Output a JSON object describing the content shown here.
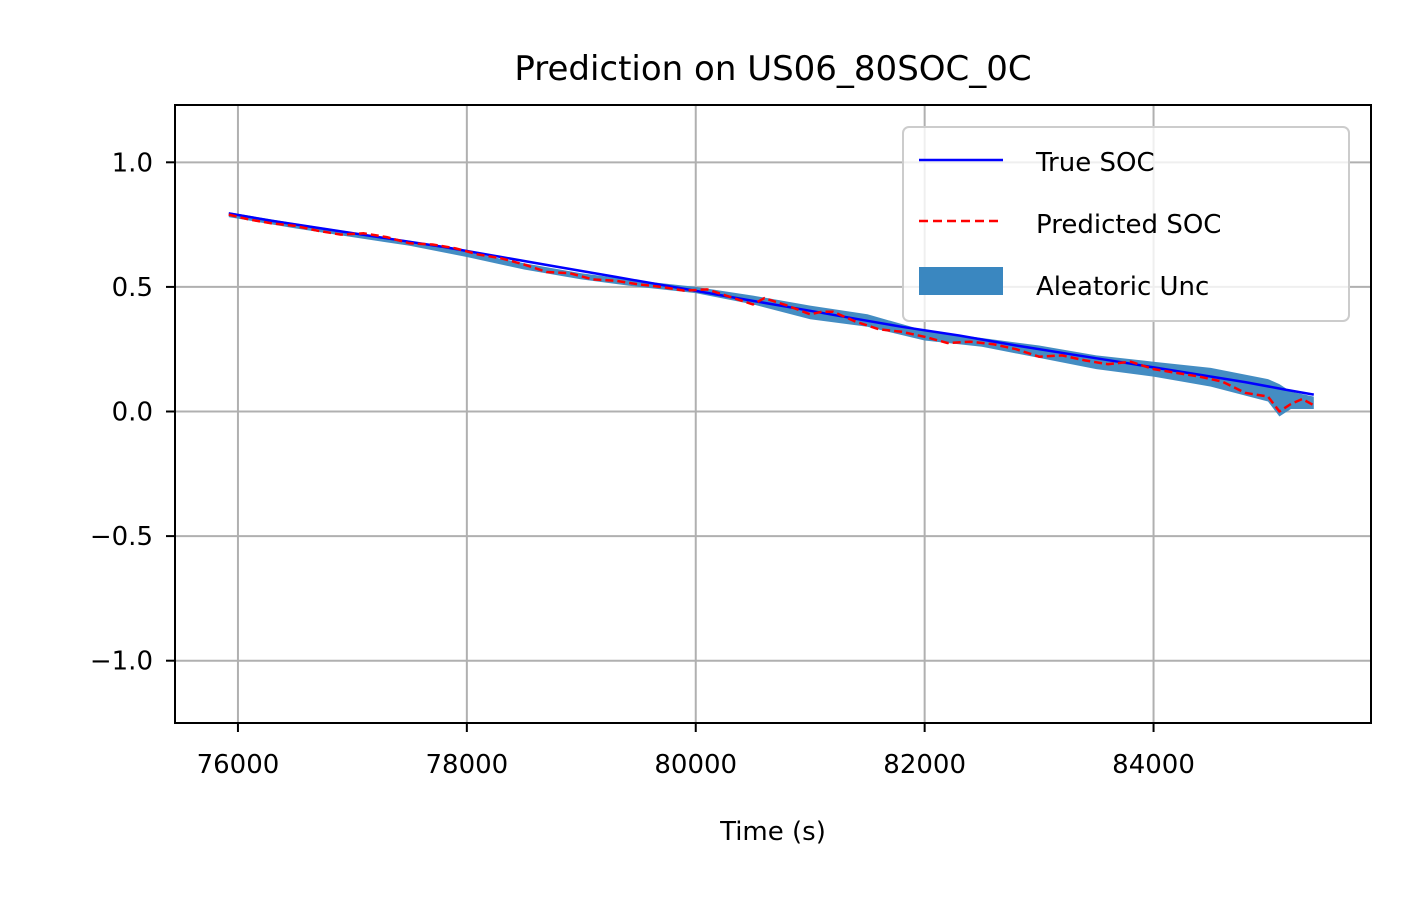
{
  "chart_data": {
    "type": "line",
    "title": "Prediction on US06_80SOC_0C",
    "xlabel": "Time (s)",
    "ylabel": "",
    "xlim": [
      75450,
      85900
    ],
    "ylim": [
      -1.25,
      1.23
    ],
    "grid": true,
    "legend_position": "top-right",
    "x_ticks": [
      76000,
      78000,
      80000,
      82000,
      84000
    ],
    "x_tick_labels": [
      "76000",
      "78000",
      "80000",
      "82000",
      "84000"
    ],
    "y_ticks": [
      1.0,
      0.5,
      0.0,
      -0.5,
      -1.0
    ],
    "y_tick_labels": [
      "1.0",
      "0.5",
      "0.0",
      "−0.5",
      "−1.0"
    ],
    "legend": [
      "True SOC",
      "Predicted SOC",
      "Aleatoric Unc"
    ],
    "colors": {
      "true": "#0000ff",
      "predicted": "#ff0000",
      "uncertainty": "#3a87c0",
      "grid": "#b0b0b0"
    },
    "series": [
      {
        "name": "True SOC",
        "style": "solid",
        "x": [
          75920,
          76300,
          76800,
          77300,
          77800,
          78300,
          78800,
          79300,
          79800,
          80300,
          80800,
          81300,
          81800,
          82300,
          82800,
          83300,
          83800,
          84300,
          84800,
          85150,
          85400
        ],
        "y": [
          0.795,
          0.765,
          0.73,
          0.695,
          0.66,
          0.62,
          0.58,
          0.54,
          0.5,
          0.46,
          0.42,
          0.38,
          0.34,
          0.305,
          0.265,
          0.228,
          0.192,
          0.155,
          0.118,
          0.088,
          0.068
        ]
      },
      {
        "name": "Predicted SOC",
        "style": "dashed",
        "x": [
          75920,
          76100,
          76300,
          76500,
          76700,
          76900,
          77100,
          77300,
          77500,
          77700,
          77900,
          78100,
          78300,
          78500,
          78700,
          78900,
          79100,
          79300,
          79500,
          79700,
          79900,
          80100,
          80300,
          80500,
          80600,
          80800,
          81000,
          81100,
          81200,
          81400,
          81600,
          81800,
          82000,
          82200,
          82400,
          82600,
          82800,
          83000,
          83200,
          83400,
          83600,
          83800,
          84000,
          84200,
          84400,
          84600,
          84800,
          85000,
          85100,
          85200,
          85300,
          85400
        ],
        "y": [
          0.79,
          0.77,
          0.755,
          0.745,
          0.725,
          0.71,
          0.715,
          0.7,
          0.675,
          0.67,
          0.655,
          0.63,
          0.615,
          0.59,
          0.56,
          0.555,
          0.53,
          0.525,
          0.51,
          0.5,
          0.485,
          0.49,
          0.46,
          0.43,
          0.455,
          0.425,
          0.39,
          0.4,
          0.4,
          0.36,
          0.33,
          0.32,
          0.3,
          0.275,
          0.28,
          0.27,
          0.25,
          0.22,
          0.225,
          0.205,
          0.19,
          0.2,
          0.17,
          0.155,
          0.14,
          0.12,
          0.075,
          0.06,
          0.0,
          0.03,
          0.05,
          0.025
        ]
      },
      {
        "name": "Aleatoric Unc",
        "style": "band",
        "x": [
          75920,
          76500,
          77000,
          77500,
          78000,
          78500,
          79000,
          79500,
          80000,
          80500,
          81000,
          81500,
          82000,
          82500,
          83000,
          83500,
          84000,
          84500,
          85000,
          85100,
          85200,
          85400
        ],
        "lower": [
          0.78,
          0.735,
          0.7,
          0.665,
          0.62,
          0.57,
          0.53,
          0.5,
          0.475,
          0.43,
          0.37,
          0.34,
          0.285,
          0.26,
          0.215,
          0.17,
          0.14,
          0.1,
          0.04,
          -0.02,
          0.01,
          0.01
        ],
        "upper": [
          0.8,
          0.755,
          0.72,
          0.685,
          0.64,
          0.595,
          0.555,
          0.525,
          0.5,
          0.465,
          0.425,
          0.39,
          0.325,
          0.295,
          0.265,
          0.225,
          0.2,
          0.175,
          0.13,
          0.11,
          0.08,
          0.06
        ]
      }
    ]
  }
}
